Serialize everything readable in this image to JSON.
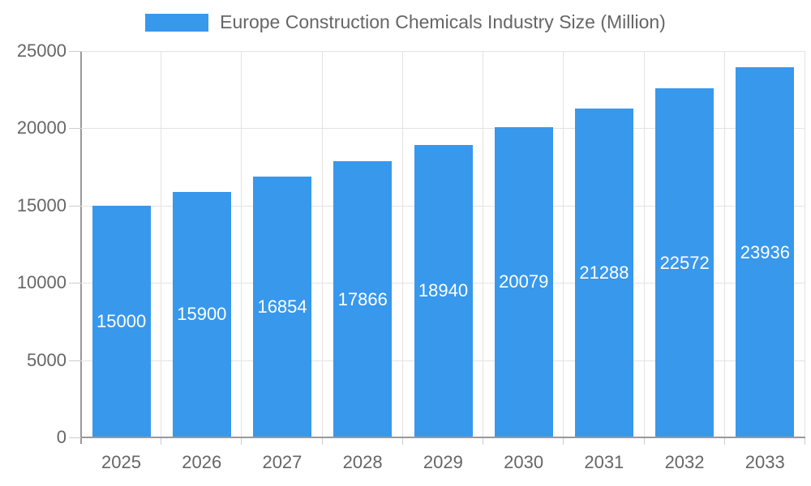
{
  "legend": {
    "label": "Europe Construction Chemicals Industry Size (Million)"
  },
  "colors": {
    "bar": "#3898EC",
    "axis_line": "#999999",
    "grid": "#e3e3e3",
    "tick_mark": "#cccccc",
    "tick_text": "#666666",
    "value_label_text": "#ffffff",
    "legend_text": "#666666"
  },
  "chart_data": {
    "type": "bar",
    "title": "Europe Construction Chemicals Industry Size (Million)",
    "categories": [
      "2025",
      "2026",
      "2027",
      "2028",
      "2029",
      "2030",
      "2031",
      "2032",
      "2033"
    ],
    "values": [
      15000,
      15900,
      16854,
      17866,
      18940,
      20079,
      21288,
      22572,
      23936
    ],
    "xlabel": "",
    "ylabel": "",
    "ylim": [
      0,
      25000
    ],
    "yticks": [
      0,
      5000,
      10000,
      15000,
      20000,
      25000
    ],
    "grid": true,
    "legend_position": "top",
    "bar_value_labels_shown": true,
    "bar_value_label_position": "center"
  }
}
